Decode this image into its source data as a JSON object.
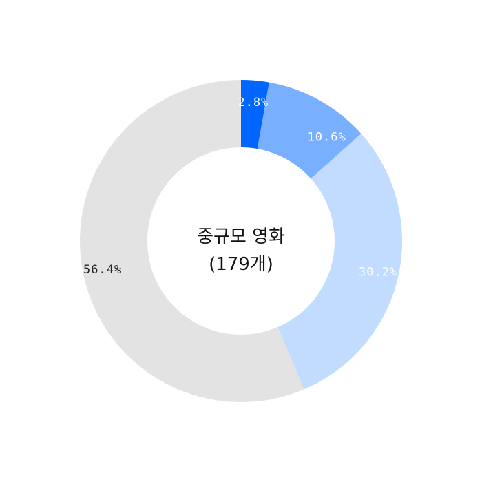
{
  "chart_data": {
    "type": "pie",
    "donut": true,
    "center_label": {
      "line1": "중규모 영화",
      "line2": "(179개)"
    },
    "slices": [
      {
        "value": 2.8,
        "label": "2.8%",
        "color": "#0066ff",
        "label_color": "#ffffff"
      },
      {
        "value": 10.6,
        "label": "10.6%",
        "color": "#78b0ff",
        "label_color": "#ffffff"
      },
      {
        "value": 30.2,
        "label": "30.2%",
        "color": "#c2dcff",
        "label_color": "#ffffff"
      },
      {
        "value": 56.4,
        "label": "56.4%",
        "color": "#e3e3e3",
        "label_color": "#222222"
      }
    ]
  }
}
